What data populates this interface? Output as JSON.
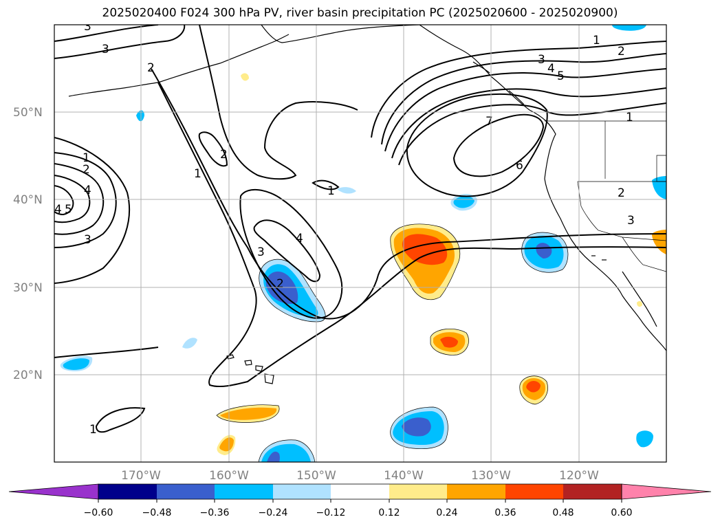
{
  "title": "2025020400 F024 300 hPa PV, river basin precipitation PC (2025020600 - 2025020900)",
  "map": {
    "lat_ticks": [
      "50°N",
      "40°N",
      "30°N",
      "20°N"
    ],
    "lon_ticks": [
      "170°W",
      "160°W",
      "150°W",
      "140°W",
      "130°W",
      "120°W"
    ],
    "pv_contour_labels": [
      "1",
      "2",
      "3",
      "4",
      "5",
      "6",
      "7"
    ]
  },
  "colorbar": {
    "ticks": [
      "−0.60",
      "−0.48",
      "−0.36",
      "−0.24",
      "−0.12",
      "0.12",
      "0.24",
      "0.36",
      "0.48",
      "0.60"
    ],
    "colors": [
      "#9932cc",
      "#00008b",
      "#3a5fcd",
      "#00bfff",
      "#b0e2ff",
      "#ffffff",
      "#ffec8b",
      "#ffa500",
      "#ff4500",
      "#b22222",
      "#ff82ab"
    ]
  },
  "chart_data": {
    "type": "heatmap",
    "title": "2025020400 F024 300 hPa PV, river basin precipitation PC (2025020600 - 2025020900)",
    "xlabel": "",
    "ylabel": "",
    "lon_range": [
      -180,
      -110
    ],
    "lat_range": [
      10,
      60
    ],
    "grid": true,
    "levels": [
      -0.6,
      -0.48,
      -0.36,
      -0.24,
      -0.12,
      0.12,
      0.24,
      0.36,
      0.48,
      0.6
    ],
    "pv_contour_levels": [
      1,
      2,
      3,
      4,
      5,
      6,
      7
    ],
    "anomalies": [
      {
        "sign": "negative",
        "lon": -154.5,
        "lat": 30.5,
        "peak": -0.48
      },
      {
        "sign": "positive",
        "lon": -138,
        "lat": 34.5,
        "peak": 0.48
      },
      {
        "sign": "negative",
        "lon": -124,
        "lat": 34,
        "peak": -0.48
      },
      {
        "sign": "negative",
        "lon": -138,
        "lat": 14.5,
        "peak": -0.48
      },
      {
        "sign": "positive",
        "lon": -134.5,
        "lat": 23.5,
        "peak": 0.48
      },
      {
        "sign": "positive",
        "lon": -125.5,
        "lat": 18.5,
        "peak": 0.48
      },
      {
        "sign": "positive",
        "lon": -156,
        "lat": 15.5,
        "peak": 0.36
      },
      {
        "sign": "negative",
        "lon": -154,
        "lat": 11,
        "peak": -0.48
      },
      {
        "sign": "negative",
        "lon": -138.5,
        "lat": 39.7,
        "peak": -0.36
      },
      {
        "sign": "negative",
        "lon": -174.5,
        "lat": 21,
        "peak": -0.36
      }
    ]
  }
}
